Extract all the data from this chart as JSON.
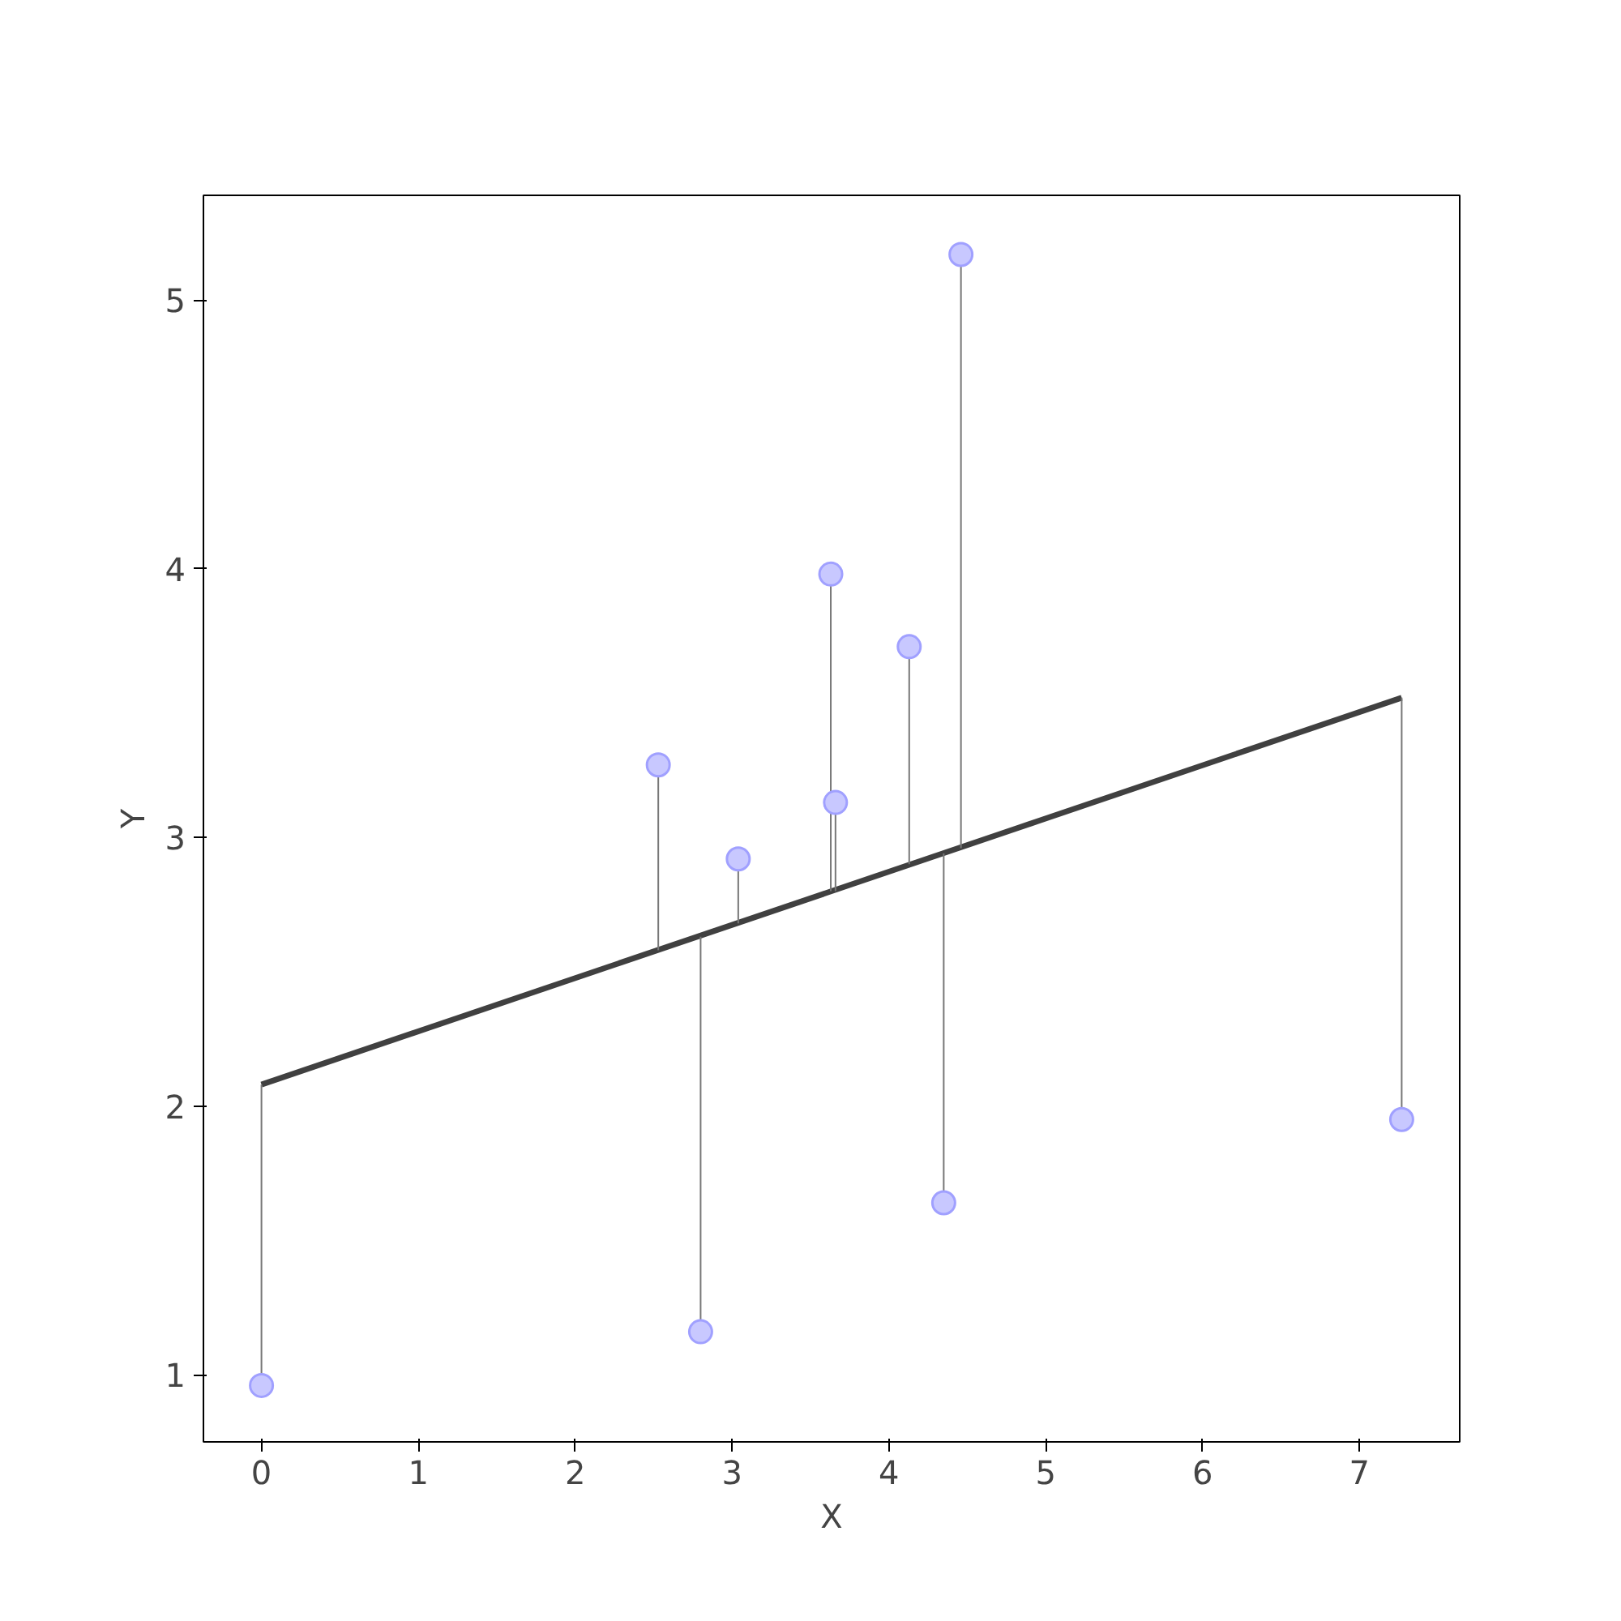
{
  "chart_data": {
    "type": "scatter",
    "xlabel": "X",
    "ylabel": "Y",
    "xlim": [
      -0.37,
      7.64
    ],
    "ylim": [
      0.75,
      5.39
    ],
    "xticks": [
      0,
      1,
      2,
      3,
      4,
      5,
      6,
      7
    ],
    "yticks": [
      1,
      2,
      3,
      4,
      5
    ],
    "grid": false,
    "series": [
      {
        "marker": "circle",
        "color": "#c8c8ff",
        "x": [
          0,
          2.53,
          2.8,
          3.04,
          3.63,
          3.66,
          4.13,
          4.35,
          4.46,
          7.27
        ],
        "values": [
          0.96,
          3.27,
          1.16,
          2.92,
          3.98,
          3.13,
          3.71,
          1.64,
          5.17,
          1.95
        ],
        "errors": [
          [
            0.96,
            2.08
          ],
          [
            2.58,
            3.27
          ],
          [
            1.16,
            2.63
          ],
          [
            2.68,
            2.92
          ],
          [
            2.8,
            3.98
          ],
          [
            2.8,
            3.13
          ],
          [
            2.9,
            3.71
          ],
          [
            1.64,
            2.94
          ],
          [
            2.96,
            5.17
          ],
          [
            1.95,
            3.52
          ]
        ]
      },
      {
        "type": "line",
        "color": "#404040",
        "x": [
          0,
          7.27
        ],
        "values": [
          2.08,
          3.52
        ]
      }
    ]
  }
}
